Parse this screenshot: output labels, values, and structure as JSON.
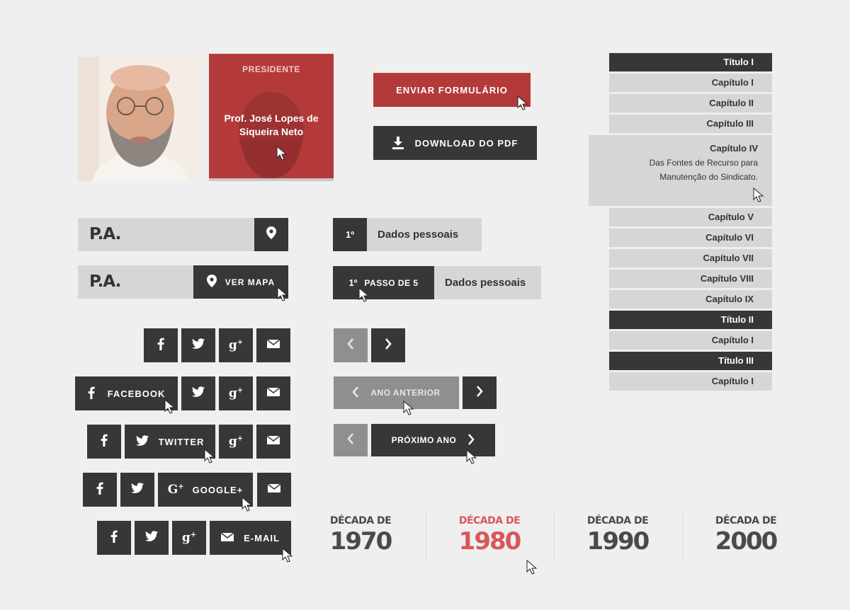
{
  "profile": {
    "role": "PRESIDENTE",
    "name": "Prof. José Lopes de Siqueira Neto"
  },
  "actions": {
    "submit_label": "ENVIAR FORMULÁRIO",
    "download_label": "DOWNLOAD DO PDF"
  },
  "address": {
    "label_1": "P.A.",
    "label_2": "P.A.",
    "map_label": "VER MAPA"
  },
  "steps": {
    "num_1": "1º",
    "title_1": "Dados pessoais",
    "num_2": "1º",
    "of_label": "PASSO DE 5",
    "title_2": "Dados pessoais"
  },
  "social": {
    "facebook_label": "FACEBOOK",
    "twitter_label": "TWITTER",
    "google_label": "GOOGLE+",
    "email_label": "E-MAIL"
  },
  "year_nav": {
    "prev_label": "ANO ANTERIOR",
    "next_label": "PRÓXIMO ANO"
  },
  "decades": [
    {
      "prefix": "DÉCADA DE",
      "year": "1970",
      "active": false
    },
    {
      "prefix": "DÉCADA DE",
      "year": "1980",
      "active": true
    },
    {
      "prefix": "DÉCADA DE",
      "year": "1990",
      "active": false
    },
    {
      "prefix": "DÉCADA DE",
      "year": "2000",
      "active": false
    }
  ],
  "toc": {
    "t1": "Título I",
    "c1": "Capítulo I",
    "c2": "Capítulo II",
    "c3": "Capítulo III",
    "c4_title": "Capítulo IV",
    "c4_desc_1": "Das Fontes de Recurso para",
    "c4_desc_2": "Manutenção do Sindicato.",
    "c5": "Capítulo V",
    "c6": "Capítulo VI",
    "c7": "Capítulo VII",
    "c8": "Capítulo VIII",
    "c9": "Capítulo IX",
    "t2": "Título II",
    "t2c1": "Capítulo I",
    "t3": "Título III",
    "t3c1": "Capítulo I"
  },
  "colors": {
    "accent_red": "#b43a3a",
    "dark": "#373737",
    "light": "#d6d6d6",
    "muted": "#8f8f8f",
    "active_decade": "#d9575a"
  },
  "icons": [
    "location-pin-icon",
    "download-icon",
    "facebook-icon",
    "twitter-icon",
    "google-plus-icon",
    "email-icon",
    "chevron-left-icon",
    "chevron-right-icon",
    "cursor-icon"
  ]
}
